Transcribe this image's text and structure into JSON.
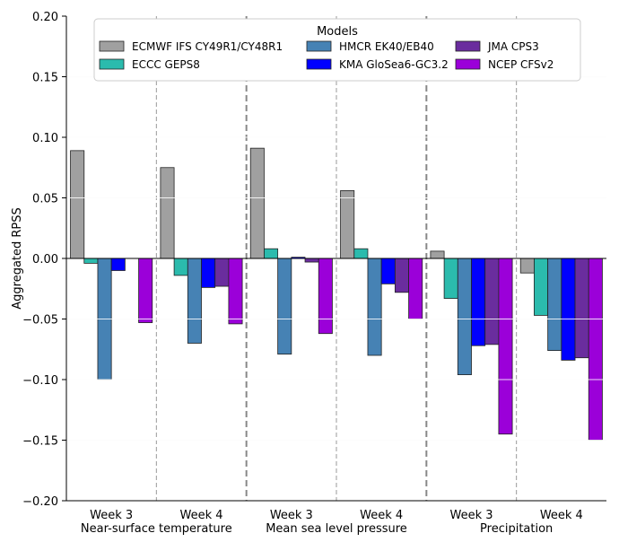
{
  "chart_data": {
    "type": "bar",
    "ylabel": "Aggregated RPSS",
    "ylim": [
      -0.2,
      0.2
    ],
    "yticks": [
      -0.2,
      -0.15,
      -0.1,
      -0.05,
      0.0,
      0.05,
      0.1,
      0.15,
      0.2
    ],
    "ytick_labels": [
      "−0.20",
      "−0.15",
      "−0.10",
      "−0.05",
      "0.00",
      "0.05",
      "0.10",
      "0.15",
      "0.20"
    ],
    "groups": [
      {
        "name": "Near-surface temperature",
        "categories": [
          "Week 3",
          "Week 4"
        ]
      },
      {
        "name": "Mean sea level pressure",
        "categories": [
          "Week 3",
          "Week 4"
        ]
      },
      {
        "name": "Precipitation",
        "categories": [
          "Week 3",
          "Week 4"
        ]
      }
    ],
    "categories": [
      "Week 3",
      "Week 4",
      "Week 3",
      "Week 4",
      "Week 3",
      "Week 4"
    ],
    "series": [
      {
        "name": "ECMWF IFS CY49R1/CY48R1",
        "color": "#a0a0a0",
        "values": [
          0.089,
          0.075,
          0.091,
          0.056,
          0.006,
          -0.012
        ]
      },
      {
        "name": "ECCC GEPS8",
        "color": "#2bbbad",
        "values": [
          -0.004,
          -0.014,
          0.008,
          0.008,
          -0.033,
          -0.047
        ]
      },
      {
        "name": "HMCR EK40/EB40",
        "color": "#4682b4",
        "values": [
          -0.1,
          -0.07,
          -0.079,
          -0.08,
          -0.096,
          -0.076
        ]
      },
      {
        "name": "KMA GloSea6-GC3.2",
        "color": "#0000ff",
        "values": [
          -0.01,
          -0.024,
          0.001,
          -0.021,
          -0.072,
          -0.084
        ]
      },
      {
        "name": "JMA CPS3",
        "color": "#6a2d9e",
        "values": [
          null,
          -0.023,
          -0.003,
          -0.028,
          -0.071,
          -0.082
        ]
      },
      {
        "name": "NCEP CFSv2",
        "color": "#9b00d9",
        "values": [
          -0.053,
          -0.054,
          -0.062,
          -0.05,
          -0.145,
          -0.15
        ]
      }
    ],
    "legend": {
      "title": "Models",
      "placement": "top-center"
    }
  }
}
